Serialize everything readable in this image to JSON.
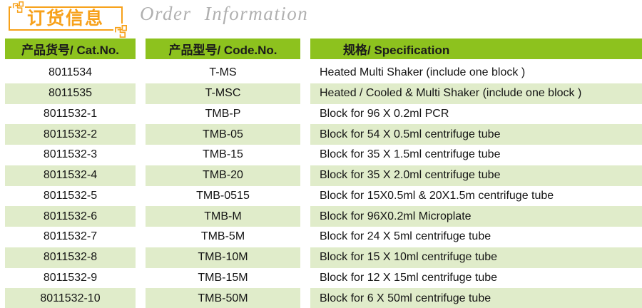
{
  "header": {
    "title_zh": "订货信息",
    "title_en": "Order Information"
  },
  "colors": {
    "accent_orange": "#F7A11A",
    "header_green": "#8DC21E",
    "row_alt_green": "#E0ECCA",
    "title_en_gray": "#B0B0B0"
  },
  "icons": {
    "corner_ornament": "greek-key-ornament"
  },
  "table": {
    "headers": [
      "产品货号/ Cat.No.",
      "产品型号/ Code.No.",
      "规格/ Specification"
    ],
    "row_keys": [
      "cat_no",
      "code_no",
      "specification"
    ],
    "rows": [
      {
        "cat_no": "8011534",
        "code_no": "T-MS",
        "specification": "Heated Multi Shaker (include one block )"
      },
      {
        "cat_no": "8011535",
        "code_no": "T-MSC",
        "specification": "Heated / Cooled & Multi Shaker (include one block )"
      },
      {
        "cat_no": "8011532-1",
        "code_no": "TMB-P",
        "specification": "Block for 96 X 0.2ml PCR"
      },
      {
        "cat_no": "8011532-2",
        "code_no": "TMB-05",
        "specification": "Block for 54 X 0.5ml centrifuge tube"
      },
      {
        "cat_no": "8011532-3",
        "code_no": "TMB-15",
        "specification": "Block for 35 X 1.5ml centrifuge tube"
      },
      {
        "cat_no": "8011532-4",
        "code_no": "TMB-20",
        "specification": "Block for 35 X 2.0ml centrifuge tube"
      },
      {
        "cat_no": "8011532-5",
        "code_no": "TMB-0515",
        "specification": "Block for 15X0.5ml & 20X1.5m centrifuge tube"
      },
      {
        "cat_no": "8011532-6",
        "code_no": "TMB-M",
        "specification": "Block for 96X0.2ml Microplate"
      },
      {
        "cat_no": "8011532-7",
        "code_no": "TMB-5M",
        "specification": "Block for 24 X 5ml centrifuge tube"
      },
      {
        "cat_no": "8011532-8",
        "code_no": "TMB-10M",
        "specification": "Block for 15 X 10ml centrifuge tube"
      },
      {
        "cat_no": "8011532-9",
        "code_no": "TMB-15M",
        "specification": "Block for 12 X 15ml centrifuge tube"
      },
      {
        "cat_no": "8011532-10",
        "code_no": "TMB-50M",
        "specification": "Block for 6 X 50ml centrifuge tube"
      }
    ]
  }
}
